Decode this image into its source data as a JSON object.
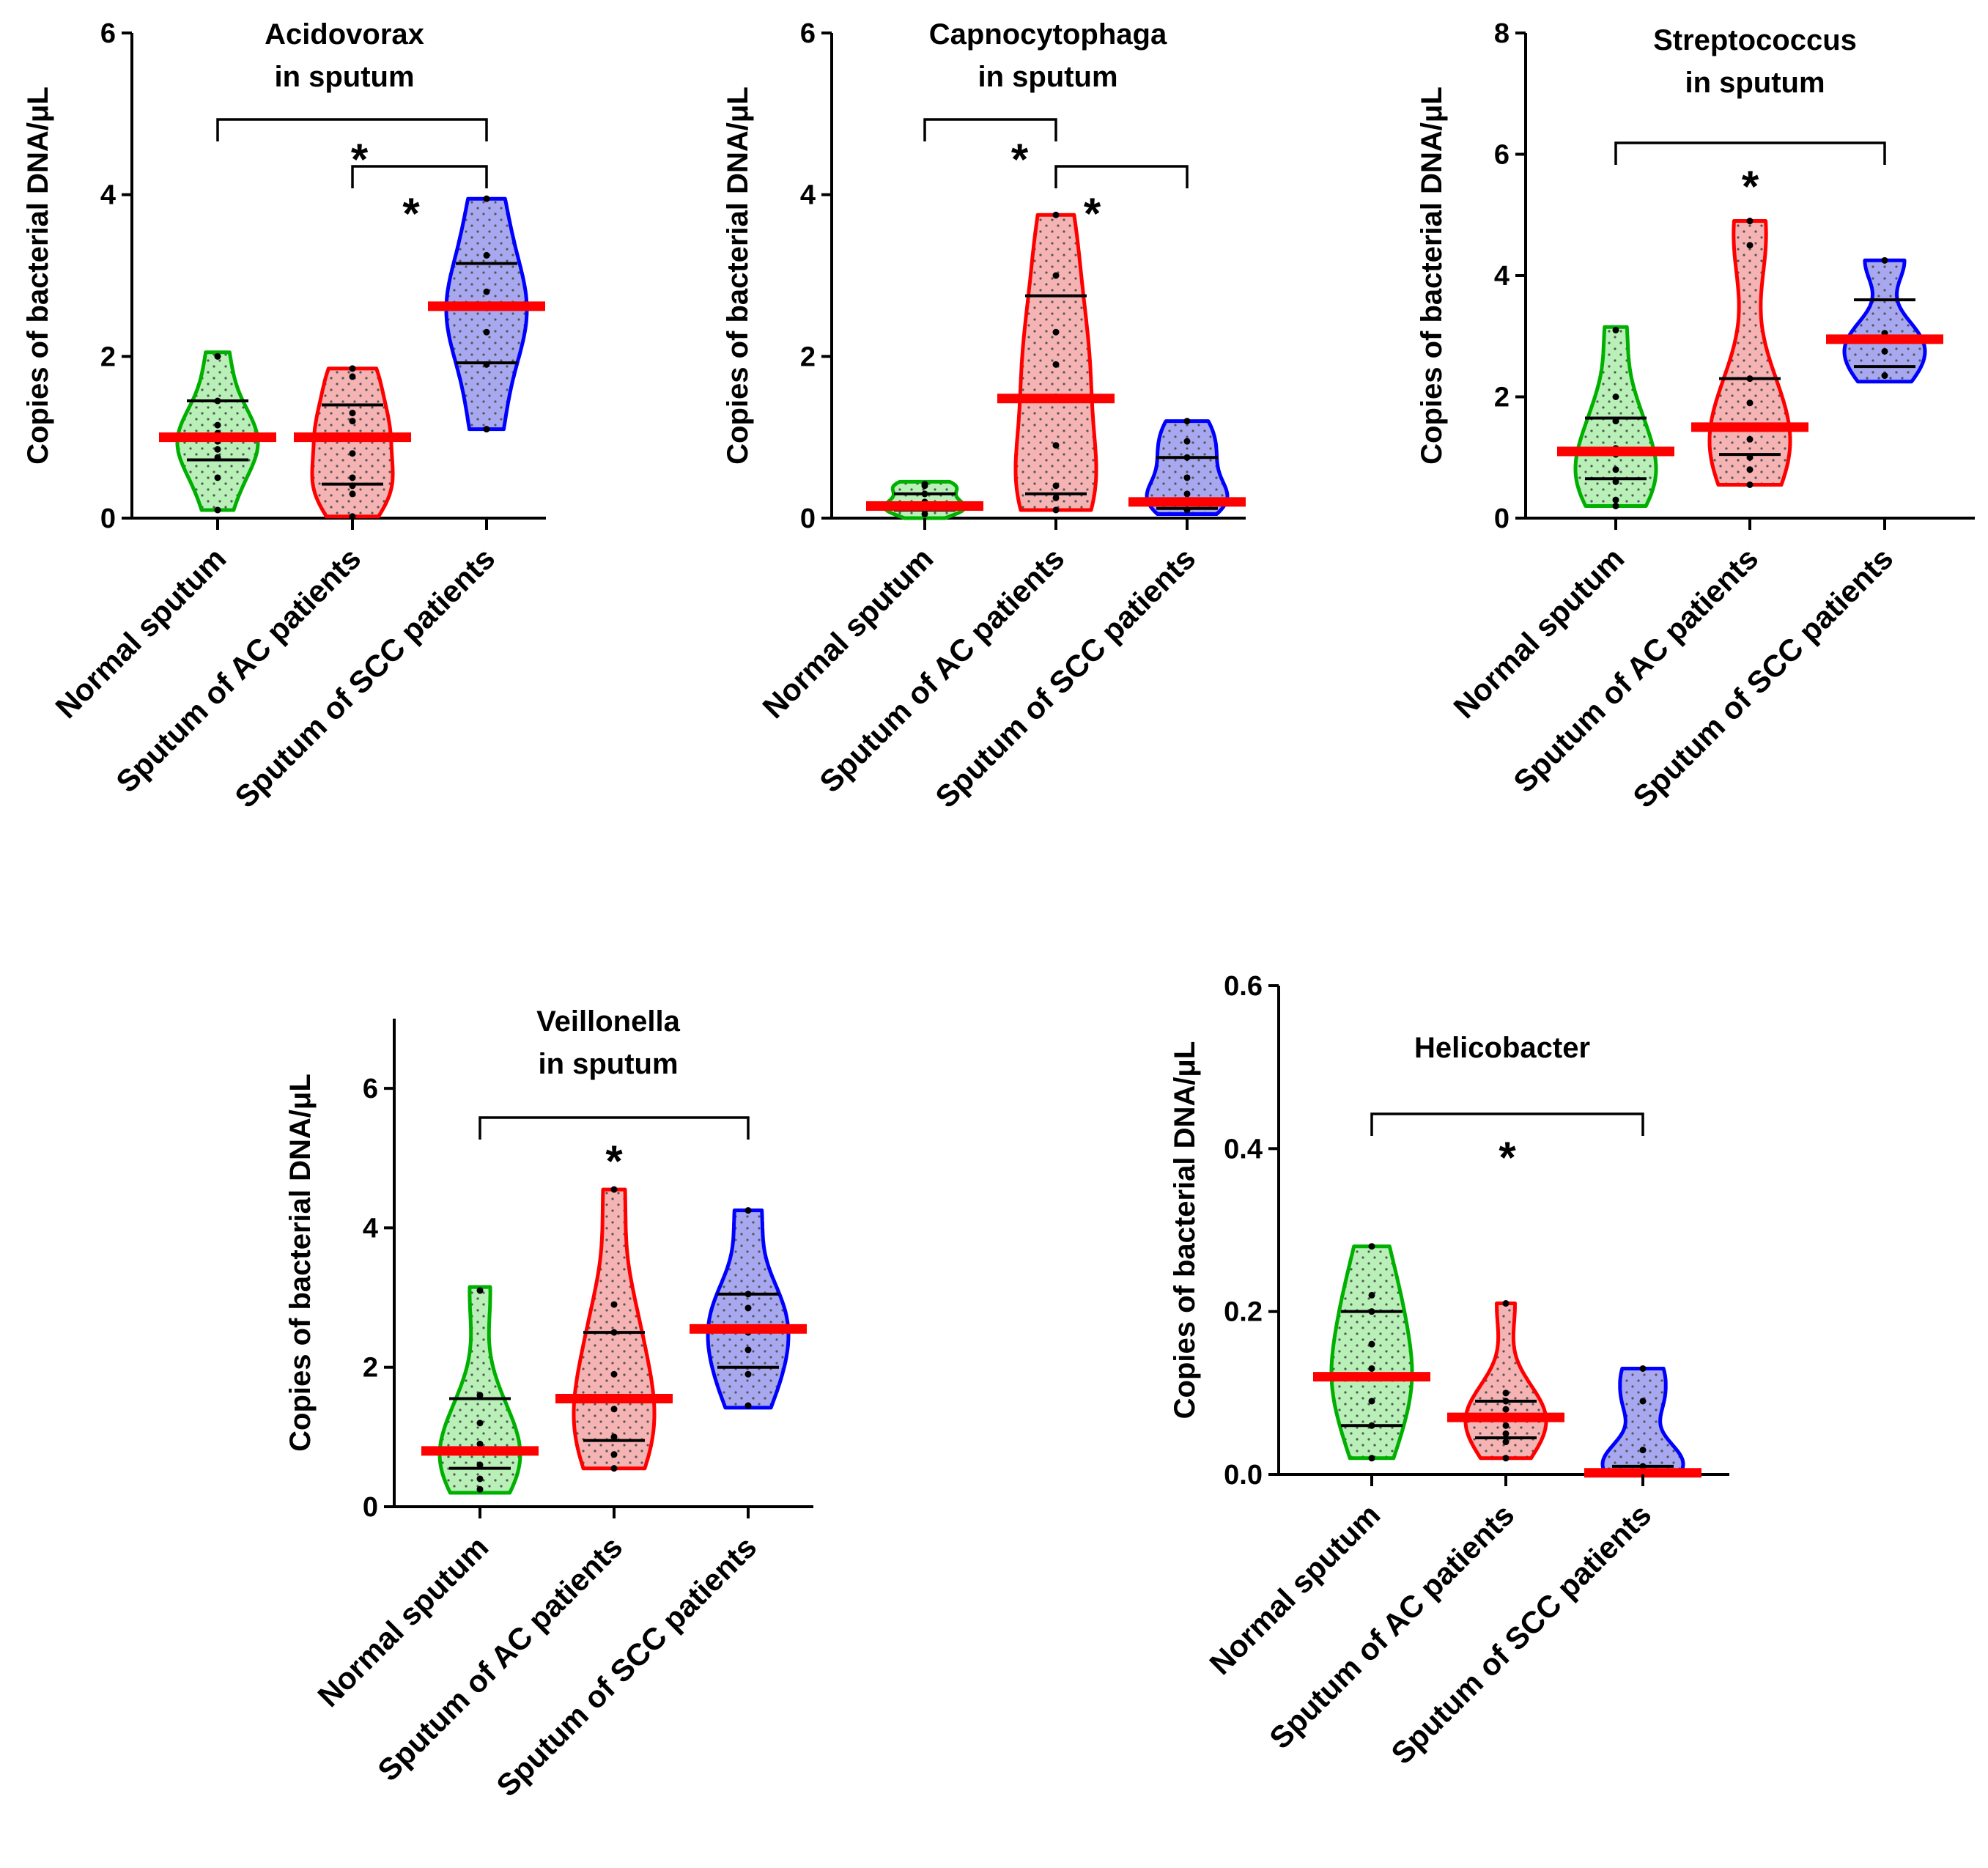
{
  "figure": {
    "y_axis_label": "Copies of bacterial DNA/μL",
    "categories": [
      "Normal sputum",
      "Sputum of AC patients",
      "Sputum of SCC patients"
    ],
    "group_colors": {
      "Normal sputum": {
        "stroke": "#00b000",
        "fill": "#b8f0b8"
      },
      "Sputum of AC patients": {
        "stroke": "#ff0000",
        "fill": "#f5b3b3"
      },
      "Sputum of SCC patients": {
        "stroke": "#0000ff",
        "fill": "#a8a8f0"
      }
    },
    "median_color": "#ff0000",
    "significance_symbol": "*"
  },
  "chart_data": [
    {
      "type": "violin",
      "title_lines": [
        "Acidovorax",
        "in sputum"
      ],
      "ylim": [
        0,
        6
      ],
      "yticks": [
        0,
        2,
        4,
        6
      ],
      "ytick_labels": [
        "0",
        "2",
        "4",
        "6"
      ],
      "groups": [
        {
          "name": "Normal sputum",
          "min": 0.1,
          "max": 2.05,
          "median": 1.0,
          "q1": 0.72,
          "q3": 1.45,
          "points": [
            2.0,
            1.45,
            1.15,
            1.05,
            0.95,
            0.85,
            0.75,
            0.5,
            0.1
          ]
        },
        {
          "name": "Sputum of AC patients",
          "min": 0.02,
          "max": 1.85,
          "median": 1.0,
          "q1": 0.42,
          "q3": 1.4,
          "points": [
            1.85,
            1.75,
            1.3,
            1.2,
            1.0,
            0.8,
            0.5,
            0.4,
            0.3,
            0.02
          ]
        },
        {
          "name": "Sputum of SCC patients",
          "min": 1.1,
          "max": 3.95,
          "median": 2.62,
          "q1": 1.92,
          "q3": 3.15,
          "points": [
            3.95,
            3.25,
            2.8,
            2.6,
            2.3,
            1.9,
            1.1
          ]
        }
      ],
      "significance": [
        {
          "from": 0,
          "to": 2,
          "label": "*"
        },
        {
          "from": 1,
          "to": 2,
          "label": "*"
        }
      ]
    },
    {
      "type": "violin",
      "title_lines": [
        "Capnocytophaga",
        "in sputum"
      ],
      "ylim": [
        0,
        6
      ],
      "yticks": [
        0,
        2,
        4,
        6
      ],
      "ytick_labels": [
        "0",
        "2",
        "4",
        "6"
      ],
      "groups": [
        {
          "name": "Normal sputum",
          "min": 0.0,
          "max": 0.45,
          "median": 0.15,
          "q1": 0.1,
          "q3": 0.3,
          "points": [
            0.42,
            0.4,
            0.3,
            0.2,
            0.15,
            0.1,
            0.05
          ]
        },
        {
          "name": "Sputum of AC patients",
          "min": 0.1,
          "max": 3.75,
          "median": 1.48,
          "q1": 0.3,
          "q3": 2.75,
          "points": [
            3.75,
            3.0,
            2.3,
            1.9,
            1.5,
            0.9,
            0.4,
            0.25,
            0.1
          ]
        },
        {
          "name": "Sputum of SCC patients",
          "min": 0.05,
          "max": 1.2,
          "median": 0.2,
          "q1": 0.12,
          "q3": 0.75,
          "points": [
            1.2,
            0.95,
            0.75,
            0.5,
            0.3,
            0.2,
            0.1
          ]
        }
      ],
      "significance": [
        {
          "from": 0,
          "to": 1,
          "label": "*"
        },
        {
          "from": 1,
          "to": 2,
          "label": "*"
        }
      ]
    },
    {
      "type": "violin",
      "title_lines": [
        "Streptococcus",
        "in sputum"
      ],
      "ylim": [
        0,
        8
      ],
      "yticks": [
        0,
        2,
        4,
        6,
        8
      ],
      "ytick_labels": [
        "0",
        "2",
        "4",
        "6",
        "8"
      ],
      "groups": [
        {
          "name": "Normal sputum",
          "min": 0.2,
          "max": 3.15,
          "median": 1.1,
          "q1": 0.65,
          "q3": 1.65,
          "points": [
            3.1,
            2.0,
            1.6,
            1.15,
            1.05,
            0.8,
            0.6,
            0.3,
            0.2
          ]
        },
        {
          "name": "Sputum of AC patients",
          "min": 0.55,
          "max": 4.9,
          "median": 1.5,
          "q1": 1.05,
          "q3": 2.3,
          "points": [
            4.9,
            4.5,
            2.3,
            1.9,
            1.5,
            1.3,
            1.0,
            0.8,
            0.55
          ]
        },
        {
          "name": "Sputum of SCC patients",
          "min": 2.25,
          "max": 4.25,
          "median": 2.95,
          "q1": 2.5,
          "q3": 3.6,
          "points": [
            4.25,
            3.05,
            2.75,
            2.35
          ]
        }
      ],
      "significance": [
        {
          "from": 0,
          "to": 2,
          "label": "*"
        }
      ]
    },
    {
      "type": "violin",
      "title_lines": [
        "Veillonella",
        "in sputum"
      ],
      "ylim": [
        0,
        7
      ],
      "yticks": [
        0,
        2,
        4,
        6
      ],
      "ytick_labels": [
        "0",
        "2",
        "4",
        "6"
      ],
      "groups": [
        {
          "name": "Normal sputum",
          "min": 0.2,
          "max": 3.15,
          "median": 0.8,
          "q1": 0.55,
          "q3": 1.55,
          "points": [
            3.1,
            1.6,
            1.2,
            0.9,
            0.8,
            0.6,
            0.4,
            0.25
          ]
        },
        {
          "name": "Sputum of AC patients",
          "min": 0.55,
          "max": 4.55,
          "median": 1.55,
          "q1": 0.95,
          "q3": 2.5,
          "points": [
            4.55,
            2.9,
            2.5,
            1.9,
            1.55,
            1.4,
            1.0,
            0.75,
            0.55
          ]
        },
        {
          "name": "Sputum of SCC patients",
          "min": 1.42,
          "max": 4.25,
          "median": 2.55,
          "q1": 2.0,
          "q3": 3.05,
          "points": [
            4.25,
            3.05,
            2.85,
            2.5,
            2.25,
            1.9,
            1.45
          ]
        }
      ],
      "significance": [
        {
          "from": 0,
          "to": 2,
          "label": "*"
        }
      ]
    },
    {
      "type": "violin",
      "title_lines": [
        "Helicobacter"
      ],
      "ylim": [
        0,
        0.6
      ],
      "yticks": [
        0,
        0.2,
        0.4,
        0.6
      ],
      "ytick_labels": [
        "0.0",
        "0.2",
        "0.4",
        "0.6"
      ],
      "groups": [
        {
          "name": "Normal sputum",
          "min": 0.02,
          "max": 0.28,
          "median": 0.12,
          "q1": 0.06,
          "q3": 0.2,
          "points": [
            0.28,
            0.22,
            0.2,
            0.16,
            0.13,
            0.12,
            0.09,
            0.06,
            0.02
          ]
        },
        {
          "name": "Sputum of AC patients",
          "min": 0.02,
          "max": 0.21,
          "median": 0.07,
          "q1": 0.045,
          "q3": 0.09,
          "points": [
            0.21,
            0.1,
            0.09,
            0.08,
            0.07,
            0.06,
            0.05,
            0.04,
            0.02
          ]
        },
        {
          "name": "Sputum of SCC patients",
          "min": 0.0,
          "max": 0.13,
          "median": 0.002,
          "q1": 0.001,
          "q3": 0.01,
          "points": [
            0.13,
            0.09,
            0.03,
            0.01,
            0.0
          ]
        }
      ],
      "significance": [
        {
          "from": 0,
          "to": 2,
          "label": "*"
        }
      ]
    }
  ]
}
